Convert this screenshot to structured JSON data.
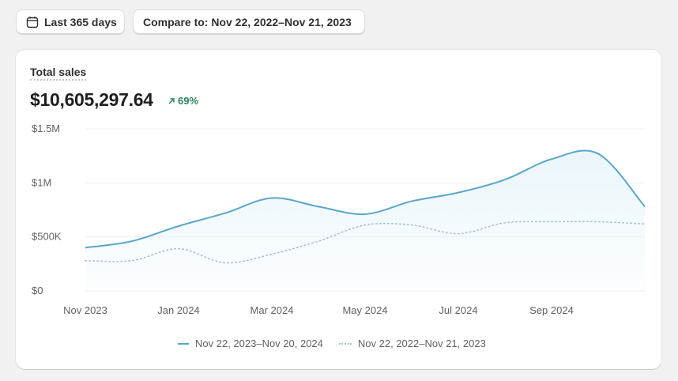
{
  "toolbar": {
    "range_label": "Last 365 days",
    "compare_label": "Compare to: Nov 22, 2022–Nov 21, 2023",
    "range_icon": "calendar-icon"
  },
  "card": {
    "title": "Total sales",
    "total": "$10,605,297.64",
    "change": "69%",
    "change_icon": "arrow-up-right-icon"
  },
  "colors": {
    "current": "#5ba6c9",
    "previous": "#a9c2cc",
    "fill": "#eaf6fb",
    "positive": "#29845a"
  },
  "chart_data": {
    "type": "area",
    "ylim": [
      0,
      1500000
    ],
    "ytick_labels": [
      "$0",
      "$500K",
      "$1M",
      "$1.5M"
    ],
    "xtick_labels": [
      "Nov 2023",
      "Jan 2024",
      "Mar 2024",
      "May 2024",
      "Jul 2024",
      "Sep 2024"
    ],
    "x": [
      "Nov 2023",
      "Dec 2023",
      "Jan 2024",
      "Feb 2024",
      "Mar 2024",
      "Apr 2024",
      "May 2024",
      "Jun 2024",
      "Jul 2024",
      "Aug 2024",
      "Sep 2024",
      "Oct 2024",
      "Nov 2024"
    ],
    "grid": true,
    "legend_position": "bottom-center",
    "series": [
      {
        "name": "Nov 22, 2023–Nov 20, 2024",
        "style": "solid",
        "values": [
          400000,
          460000,
          600000,
          720000,
          860000,
          780000,
          710000,
          830000,
          910000,
          1030000,
          1220000,
          1270000,
          780000
        ]
      },
      {
        "name": "Nov 22, 2022–Nov 21, 2023",
        "style": "dotted",
        "values": [
          280000,
          280000,
          390000,
          260000,
          340000,
          460000,
          610000,
          610000,
          530000,
          630000,
          640000,
          640000,
          620000
        ]
      }
    ]
  }
}
